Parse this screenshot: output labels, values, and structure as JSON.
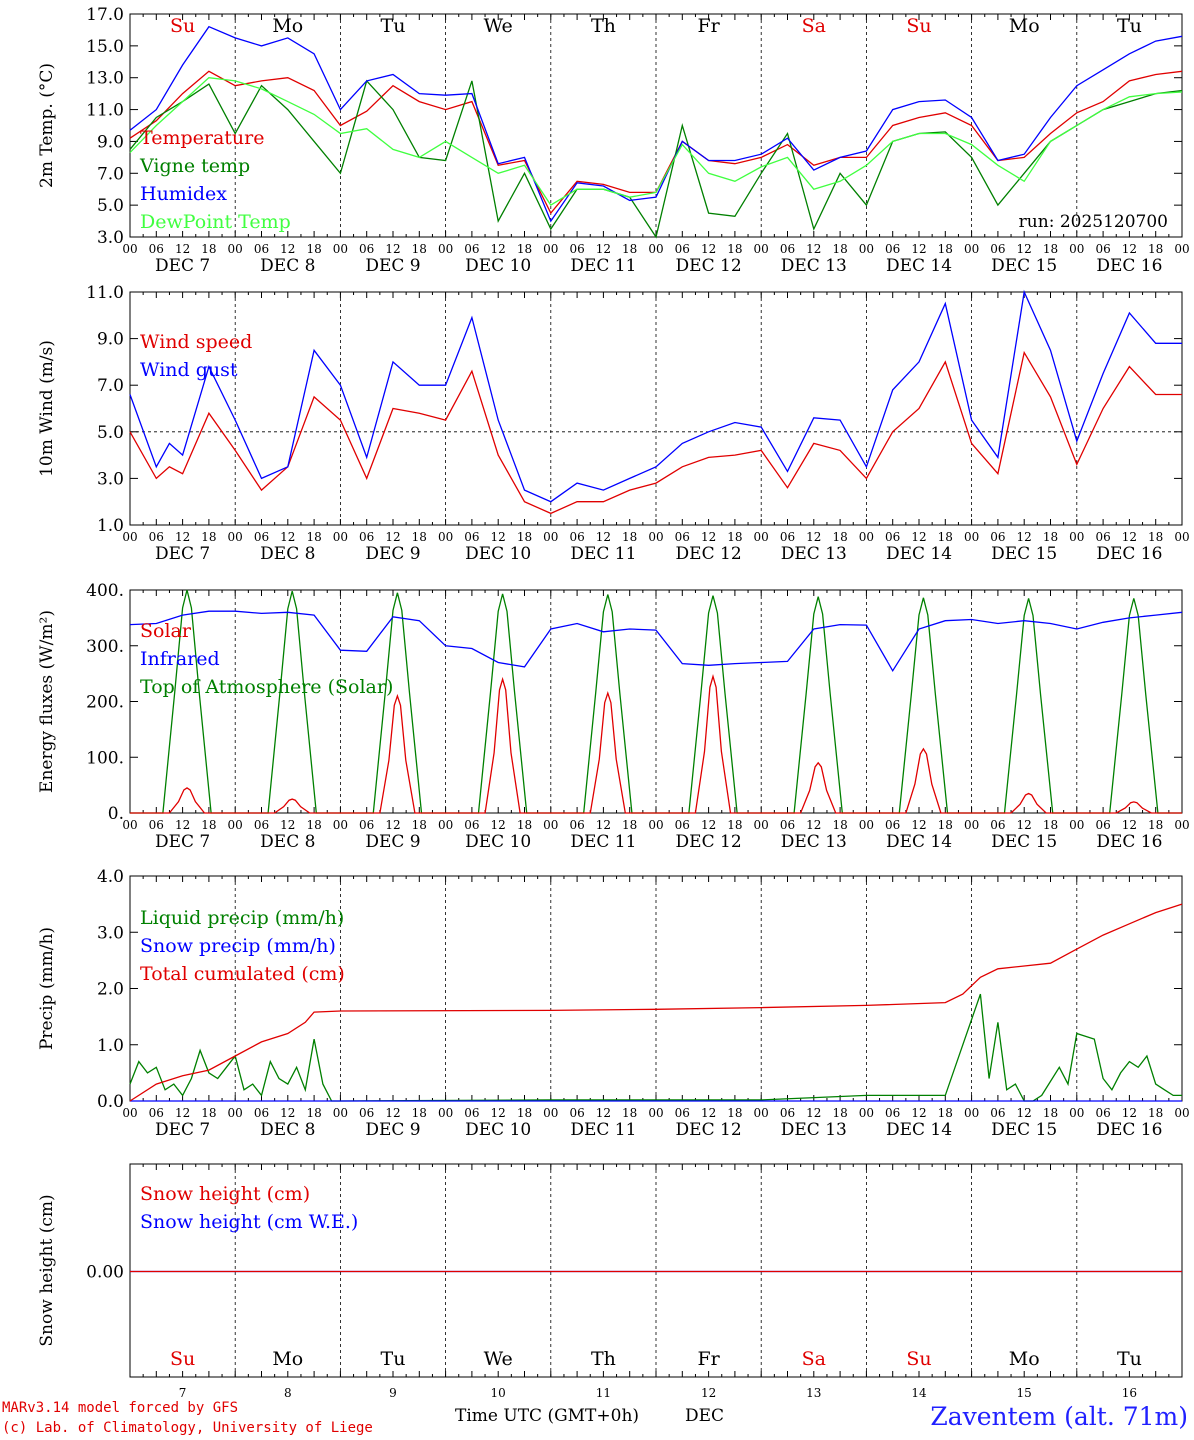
{
  "days": {
    "weekdays": [
      "Su",
      "Mo",
      "Tu",
      "We",
      "Th",
      "Fr",
      "Sa",
      "Su",
      "Mo",
      "Tu"
    ],
    "weekday_colors": [
      "#e00000",
      "#000000",
      "#000000",
      "#000000",
      "#000000",
      "#000000",
      "#e00000",
      "#e00000",
      "#000000",
      "#000000"
    ],
    "dates": [
      "DEC  7",
      "DEC  8",
      "DEC  9",
      "DEC 10",
      "DEC 11",
      "DEC 12",
      "DEC 13",
      "DEC 14",
      "DEC 15",
      "DEC 16"
    ],
    "day_numbers": [
      "7",
      "8",
      "9",
      "10",
      "11",
      "12",
      "13",
      "14",
      "15",
      "16"
    ],
    "hour_ticks": [
      "00",
      "06",
      "12",
      "18"
    ],
    "final_tick": "00"
  },
  "chart_data": [
    {
      "type": "line",
      "ylabel": "2m Temp. (°C)",
      "ylim": [
        3.0,
        17.0
      ],
      "yticks": [
        "3.0",
        "5.0",
        "7.0",
        "9.0",
        "11.0",
        "13.0",
        "15.0",
        "17.0"
      ],
      "x_unit": "hours since Dec 7 00 UTC",
      "annotation": "run: 2025120700",
      "series": [
        {
          "name": "Temperature",
          "color": "#e00000",
          "x": [
            0,
            6,
            12,
            18,
            24,
            30,
            36,
            42,
            48,
            54,
            60,
            66,
            72,
            78,
            84,
            90,
            96,
            102,
            108,
            114,
            120,
            126,
            132,
            138,
            144,
            150,
            156,
            162,
            168,
            174,
            180,
            186,
            192,
            198,
            204,
            210,
            216,
            222,
            228,
            234,
            240
          ],
          "y": [
            9.2,
            10.3,
            12.0,
            13.4,
            12.5,
            12.8,
            13.0,
            12.2,
            10.0,
            10.9,
            12.5,
            11.5,
            11.0,
            11.5,
            7.5,
            7.8,
            4.5,
            6.5,
            6.3,
            5.8,
            5.8,
            9.0,
            7.8,
            7.6,
            8.0,
            8.8,
            7.5,
            8.0,
            8.0,
            10.0,
            10.5,
            10.8,
            10.0,
            7.8,
            8.0,
            9.5,
            10.8,
            11.5,
            12.8,
            13.2,
            13.4
          ]
        },
        {
          "name": "Vigne temp",
          "color": "#008000",
          "x": [
            0,
            6,
            12,
            18,
            24,
            30,
            36,
            42,
            48,
            54,
            60,
            66,
            72,
            78,
            84,
            90,
            96,
            102,
            108,
            114,
            120,
            126,
            132,
            138,
            144,
            150,
            156,
            162,
            168,
            174,
            180,
            186,
            192,
            198,
            204,
            210,
            216,
            222,
            228,
            234,
            240
          ],
          "y": [
            8.5,
            10.5,
            11.5,
            12.6,
            9.5,
            12.5,
            11.0,
            9.0,
            7.0,
            12.8,
            11.0,
            8.0,
            7.8,
            12.8,
            4.0,
            7.0,
            3.5,
            6.0,
            6.0,
            5.5,
            3.0,
            10.0,
            4.5,
            4.3,
            7.0,
            9.5,
            3.5,
            7.0,
            5.0,
            9.0,
            9.5,
            9.6,
            8.0,
            5.0,
            7.0,
            9.0,
            10.0,
            11.0,
            11.5,
            12.0,
            12.2
          ]
        },
        {
          "name": "Humidex",
          "color": "#0000ff",
          "x": [
            0,
            6,
            12,
            18,
            24,
            30,
            36,
            42,
            48,
            54,
            60,
            66,
            72,
            78,
            84,
            90,
            96,
            102,
            108,
            114,
            120,
            126,
            132,
            138,
            144,
            150,
            156,
            162,
            168,
            174,
            180,
            186,
            192,
            198,
            204,
            210,
            216,
            222,
            228,
            234,
            240
          ],
          "y": [
            9.7,
            11.0,
            13.8,
            16.2,
            15.5,
            15.0,
            15.5,
            14.5,
            11.0,
            12.8,
            13.2,
            12.0,
            11.9,
            12.0,
            7.6,
            8.0,
            4.0,
            6.4,
            6.2,
            5.3,
            5.5,
            9.0,
            7.8,
            7.8,
            8.2,
            9.2,
            7.2,
            8.0,
            8.4,
            11.0,
            11.5,
            11.6,
            10.5,
            7.8,
            8.2,
            10.5,
            12.5,
            13.5,
            14.5,
            15.3,
            15.6
          ]
        },
        {
          "name": "DewPoint Temp",
          "color": "#40ff40",
          "x": [
            0,
            6,
            12,
            18,
            24,
            30,
            36,
            42,
            48,
            54,
            60,
            66,
            72,
            78,
            84,
            90,
            96,
            102,
            108,
            114,
            120,
            126,
            132,
            138,
            144,
            150,
            156,
            162,
            168,
            174,
            180,
            186,
            192,
            198,
            204,
            210,
            216,
            222,
            228,
            234,
            240
          ],
          "y": [
            8.3,
            10.0,
            11.5,
            13.0,
            12.8,
            12.3,
            11.5,
            10.7,
            9.5,
            9.8,
            8.5,
            8.0,
            9.0,
            8.0,
            7.0,
            7.5,
            5.0,
            6.0,
            6.0,
            5.5,
            5.8,
            8.8,
            7.0,
            6.5,
            7.4,
            8.0,
            6.0,
            6.5,
            7.5,
            9.0,
            9.5,
            9.5,
            8.8,
            7.5,
            6.5,
            9.0,
            10.0,
            11.0,
            11.8,
            12.0,
            12.1
          ]
        }
      ]
    },
    {
      "type": "line",
      "ylabel": "10m Wind (m/s)",
      "ylim": [
        1.0,
        11.0
      ],
      "yticks": [
        "1.0",
        "3.0",
        "5.0",
        "7.0",
        "9.0",
        "11.0"
      ],
      "reference_line": 5.0,
      "series": [
        {
          "name": "Wind speed",
          "color": "#e00000",
          "x": [
            0,
            6,
            9,
            12,
            18,
            24,
            30,
            36,
            42,
            48,
            54,
            60,
            66,
            72,
            78,
            84,
            90,
            96,
            102,
            108,
            114,
            120,
            126,
            132,
            138,
            144,
            150,
            156,
            162,
            168,
            174,
            180,
            186,
            192,
            198,
            204,
            210,
            216,
            222,
            228,
            234,
            240
          ],
          "y": [
            5.0,
            3.0,
            3.5,
            3.2,
            5.8,
            4.2,
            2.5,
            3.5,
            6.5,
            5.5,
            3.0,
            6.0,
            5.8,
            5.5,
            7.6,
            4.0,
            2.0,
            1.5,
            2.0,
            2.0,
            2.5,
            2.8,
            3.5,
            3.9,
            4.0,
            4.2,
            2.6,
            4.5,
            4.2,
            3.0,
            5.0,
            6.0,
            8.0,
            4.5,
            3.2,
            8.4,
            6.5,
            3.6,
            6.0,
            7.8,
            6.6,
            6.6
          ]
        },
        {
          "name": "Wind gust",
          "color": "#0000ff",
          "x": [
            0,
            6,
            9,
            12,
            18,
            24,
            30,
            36,
            42,
            48,
            54,
            60,
            66,
            72,
            78,
            84,
            90,
            96,
            102,
            108,
            114,
            120,
            126,
            132,
            138,
            144,
            150,
            156,
            162,
            168,
            174,
            180,
            186,
            192,
            198,
            204,
            210,
            216,
            222,
            228,
            234,
            240
          ],
          "y": [
            6.6,
            3.5,
            4.5,
            4.0,
            7.8,
            5.5,
            3.0,
            3.5,
            8.5,
            7.0,
            3.9,
            8.0,
            7.0,
            7.0,
            9.9,
            5.5,
            2.5,
            2.0,
            2.8,
            2.5,
            3.0,
            3.5,
            4.5,
            5.0,
            5.4,
            5.2,
            3.3,
            5.6,
            5.5,
            3.5,
            6.8,
            8.0,
            10.5,
            5.5,
            3.9,
            11.0,
            8.5,
            4.6,
            7.5,
            10.1,
            8.8,
            8.8
          ]
        }
      ]
    },
    {
      "type": "line",
      "ylabel": "Energy fluxes (W/m²)",
      "ylim": [
        0,
        400
      ],
      "yticks": [
        "0.",
        "100.",
        "200.",
        "300.",
        "400."
      ],
      "series": [
        {
          "name": "Solar",
          "color": "#e00000",
          "peaks": [
            45,
            25,
            210,
            240,
            215,
            245,
            90,
            115,
            35,
            20
          ]
        },
        {
          "name": "Infrared",
          "color": "#0000ff",
          "x": [
            0,
            6,
            12,
            18,
            24,
            30,
            36,
            42,
            48,
            54,
            60,
            66,
            72,
            78,
            84,
            90,
            96,
            102,
            108,
            114,
            120,
            126,
            132,
            138,
            144,
            150,
            156,
            162,
            168,
            174,
            180,
            186,
            192,
            198,
            204,
            210,
            216,
            222,
            228,
            234,
            240
          ],
          "y": [
            338,
            340,
            355,
            362,
            362,
            358,
            360,
            355,
            292,
            290,
            352,
            345,
            300,
            295,
            270,
            262,
            330,
            340,
            325,
            330,
            328,
            268,
            265,
            268,
            270,
            272,
            330,
            338,
            337,
            255,
            330,
            345,
            347,
            340,
            345,
            340,
            330,
            342,
            350,
            355,
            360
          ]
        },
        {
          "name": "Top of Atmosphere (Solar)",
          "color": "#008000",
          "peaks": [
            400,
            398,
            395,
            393,
            392,
            390,
            388,
            386,
            385,
            385
          ]
        }
      ]
    },
    {
      "type": "line",
      "ylabel": "Precip (mm/h)",
      "ylim": [
        0.0,
        4.0
      ],
      "yticks": [
        "0.0",
        "1.0",
        "2.0",
        "3.0",
        "4.0"
      ],
      "series": [
        {
          "name": "Liquid precip (mm/h)",
          "color": "#008000",
          "x": [
            0,
            2,
            4,
            6,
            8,
            10,
            12,
            14,
            16,
            18,
            20,
            22,
            24,
            26,
            28,
            30,
            32,
            34,
            36,
            38,
            40,
            42,
            44,
            46,
            48,
            96,
            120,
            144,
            168,
            186,
            190,
            194,
            196,
            198,
            200,
            202,
            204,
            206,
            208,
            212,
            214,
            216,
            220,
            222,
            224,
            226,
            228,
            230,
            232,
            234,
            236,
            238,
            240
          ],
          "y": [
            0.3,
            0.7,
            0.5,
            0.6,
            0.2,
            0.3,
            0.1,
            0.4,
            0.9,
            0.5,
            0.4,
            0.6,
            0.8,
            0.2,
            0.3,
            0.1,
            0.7,
            0.4,
            0.3,
            0.6,
            0.2,
            1.1,
            0.3,
            0.0,
            0.0,
            0.02,
            0.02,
            0.02,
            0.1,
            0.1,
            1.0,
            1.9,
            0.4,
            1.4,
            0.2,
            0.3,
            0.0,
            0.0,
            0.1,
            0.6,
            0.3,
            1.2,
            1.1,
            0.4,
            0.2,
            0.5,
            0.7,
            0.6,
            0.8,
            0.3,
            0.2,
            0.1,
            0.1
          ]
        },
        {
          "name": "Snow precip (mm/h)",
          "color": "#0000ff",
          "x": [
            0,
            240
          ],
          "y": [
            0,
            0
          ]
        },
        {
          "name": "Total cumulated (cm)",
          "color": "#e00000",
          "x": [
            0,
            6,
            12,
            18,
            24,
            30,
            36,
            40,
            42,
            48,
            96,
            120,
            144,
            168,
            186,
            190,
            194,
            198,
            204,
            210,
            216,
            222,
            228,
            234,
            240
          ],
          "y": [
            0.0,
            0.3,
            0.45,
            0.55,
            0.8,
            1.05,
            1.2,
            1.4,
            1.58,
            1.6,
            1.61,
            1.63,
            1.66,
            1.7,
            1.75,
            1.9,
            2.2,
            2.35,
            2.4,
            2.45,
            2.7,
            2.95,
            3.15,
            3.35,
            3.5
          ]
        }
      ]
    },
    {
      "type": "line",
      "ylabel": "Snow height (cm)",
      "yticks": [
        "0.00"
      ],
      "series": [
        {
          "name": "Snow height (cm)",
          "color": "#e00000",
          "x": [
            0,
            240
          ],
          "y": [
            0,
            0
          ]
        },
        {
          "name": "Snow height (cm W.E.)",
          "color": "#0000ff",
          "x": [
            0,
            240
          ],
          "y": [
            0,
            0
          ]
        }
      ]
    }
  ],
  "footer": {
    "model": "MARv3.14 model forced by GFS",
    "credit": "(c) Lab. of Climatology, University of Liege",
    "xlabel": "Time UTC (GMT+0h)",
    "month": "DEC",
    "station": "Zaventem (alt. 71m)"
  }
}
